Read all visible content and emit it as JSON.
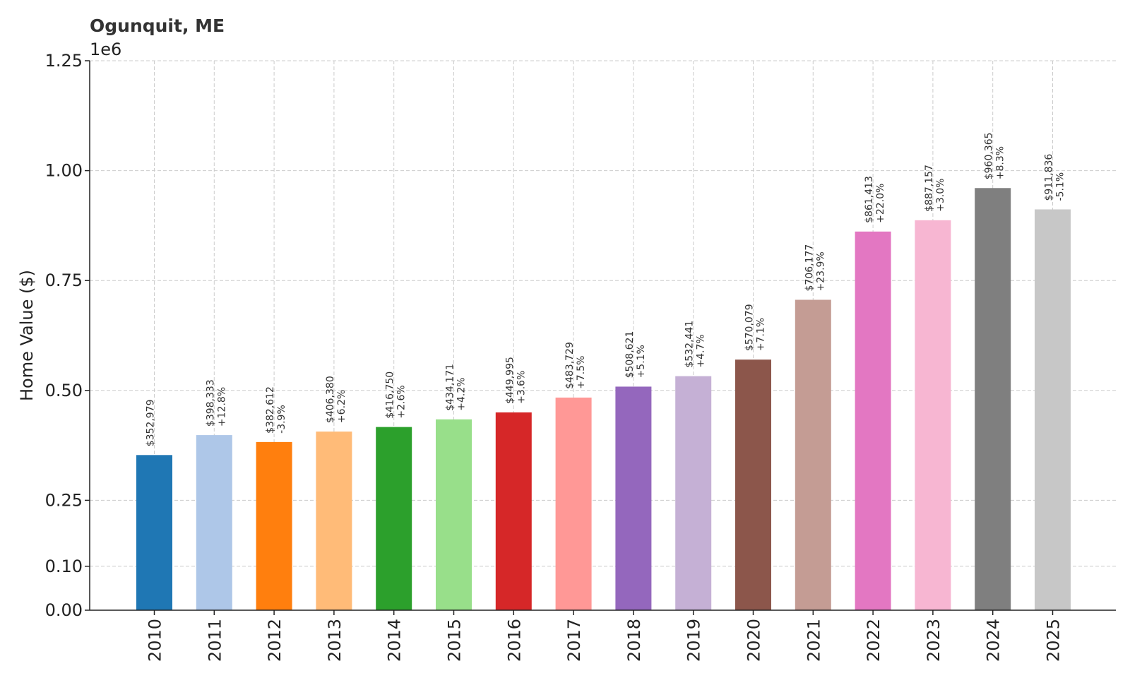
{
  "chart_data": {
    "type": "bar",
    "title": "Ogunquit, ME",
    "ylabel": "Home Value ($)",
    "xlabel": "",
    "y_exponent_label": "1e6",
    "ylim": [
      0,
      1250000
    ],
    "yticks": [
      0,
      100000,
      250000,
      500000,
      750000,
      1000000,
      1250000
    ],
    "ytick_labels": [
      "0.00",
      "0.10",
      "0.25",
      "0.50",
      "0.75",
      "1.00",
      "1.25"
    ],
    "grid": true,
    "categories": [
      "2010",
      "2011",
      "2012",
      "2013",
      "2014",
      "2015",
      "2016",
      "2017",
      "2018",
      "2019",
      "2020",
      "2021",
      "2022",
      "2023",
      "2024",
      "2025"
    ],
    "values": [
      352979,
      398333,
      382612,
      406380,
      416750,
      434171,
      449995,
      483729,
      508621,
      532441,
      570079,
      706177,
      861413,
      887157,
      960365,
      911836
    ],
    "value_labels": [
      "$352,979",
      "$398,333",
      "$382,612",
      "$406,380",
      "$416,750",
      "$434,171",
      "$449,995",
      "$483,729",
      "$508,621",
      "$532,441",
      "$570,079",
      "$706,177",
      "$861,413",
      "$887,157",
      "$960,365",
      "$911,836"
    ],
    "change_labels": [
      "",
      "+12.8%",
      "-3.9%",
      "+6.2%",
      "+2.6%",
      "+4.2%",
      "+3.6%",
      "+7.5%",
      "+5.1%",
      "+4.7%",
      "+7.1%",
      "+23.9%",
      "+22.0%",
      "+3.0%",
      "+8.3%",
      "-5.1%"
    ],
    "colors": [
      "#1f77b4",
      "#aec7e8",
      "#ff7f0e",
      "#ffbb78",
      "#2ca02c",
      "#98df8a",
      "#d62728",
      "#ff9896",
      "#9467bd",
      "#c5b0d5",
      "#8c564b",
      "#c49c94",
      "#e377c2",
      "#f7b6d2",
      "#7f7f7f",
      "#c7c7c7"
    ]
  }
}
